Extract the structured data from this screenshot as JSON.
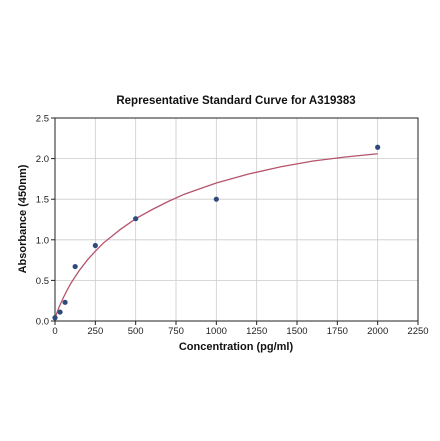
{
  "chart_data": {
    "type": "scatter",
    "title": "Representative Standard Curve for A319383",
    "xlabel": "Concentration (pg/ml)",
    "ylabel": "Absorbance (450nm)",
    "xlim": [
      0,
      2250
    ],
    "ylim": [
      0,
      2.5
    ],
    "xticks": [
      0,
      250,
      500,
      750,
      1000,
      1250,
      1500,
      1750,
      2000,
      2250
    ],
    "yticks": [
      0.0,
      0.5,
      1.0,
      1.5,
      2.0,
      2.5
    ],
    "xtick_labels": [
      "0",
      "250",
      "500",
      "750",
      "1000",
      "1250",
      "1500",
      "1750",
      "2000",
      "2250"
    ],
    "ytick_labels": [
      "0.0",
      "0.5",
      "1.0",
      "1.5",
      "2.0",
      "2.5"
    ],
    "grid": true,
    "series": [
      {
        "x": [
          0,
          31.25,
          62.5,
          125,
          250,
          500,
          1000,
          2000
        ],
        "y": [
          0.04,
          0.11,
          0.23,
          0.67,
          0.93,
          1.26,
          1.5,
          2.14
        ]
      }
    ],
    "fit_curve": {
      "x": [
        0,
        10,
        25,
        50,
        75,
        100,
        150,
        200,
        250,
        300,
        400,
        500,
        600,
        700,
        800,
        900,
        1000,
        1200,
        1400,
        1600,
        1800,
        2000
      ],
      "y": [
        0.03,
        0.09,
        0.17,
        0.28,
        0.38,
        0.47,
        0.62,
        0.75,
        0.86,
        0.96,
        1.12,
        1.26,
        1.37,
        1.47,
        1.56,
        1.63,
        1.7,
        1.81,
        1.9,
        1.97,
        2.02,
        2.06
      ]
    },
    "colors": {
      "points": "#2f4b7c",
      "fit_line": "#b5546b",
      "grid": "#cccccc",
      "axes": "#222222"
    }
  }
}
